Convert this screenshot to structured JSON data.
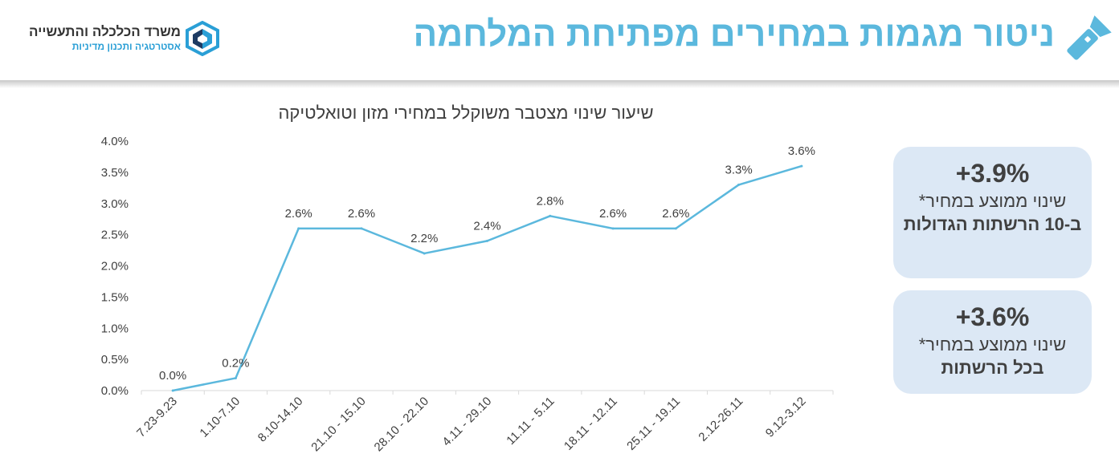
{
  "header": {
    "title": "ניטור מגמות במחירים מפתיחת המלחמה",
    "logo_line1": "משרד הכלכלה והתעשייה",
    "logo_line2": "אסטרטגיה ותכנון מדיניות"
  },
  "colors": {
    "accent": "#5bb8dd",
    "line": "#5bb8dd",
    "card_bg": "#dce8f5",
    "text": "#404040"
  },
  "cards": [
    {
      "value": "+3.9%",
      "desc": "שינוי ממוצע במחיר*",
      "emph": "ב-10 הרשתות הגדולות"
    },
    {
      "value": "+3.6%",
      "desc": "שינוי ממוצע במחיר*",
      "emph": "בכל הרשתות"
    }
  ],
  "chart_data": {
    "type": "line",
    "title": "שיעור שינוי מצטבר משוקלל במחירי מזון וטואלטיקה",
    "categories": [
      "7.23-9.23",
      "1.10-7.10",
      "8.10-14.10",
      "21.10 - 15.10",
      "28.10 - 22.10",
      "4.11 - 29.10",
      "11.11 - 5.11",
      "18.11 - 12.11",
      "25.11 - 19.11",
      "2.12-26.11",
      "9.12-3.12"
    ],
    "values": [
      0.0,
      0.2,
      2.6,
      2.6,
      2.2,
      2.4,
      2.8,
      2.6,
      2.6,
      3.3,
      3.6
    ],
    "data_labels": [
      "0.0%",
      "0.2%",
      "2.6%",
      "2.6%",
      "2.2%",
      "2.4%",
      "2.8%",
      "2.6%",
      "2.6%",
      "3.3%",
      "3.6%"
    ],
    "y_ticks": [
      "0.0%",
      "0.5%",
      "1.0%",
      "1.5%",
      "2.0%",
      "2.5%",
      "3.0%",
      "3.5%",
      "4.0%"
    ],
    "ylim": [
      0,
      4
    ],
    "xlabel": "",
    "ylabel": "",
    "grid": false
  }
}
